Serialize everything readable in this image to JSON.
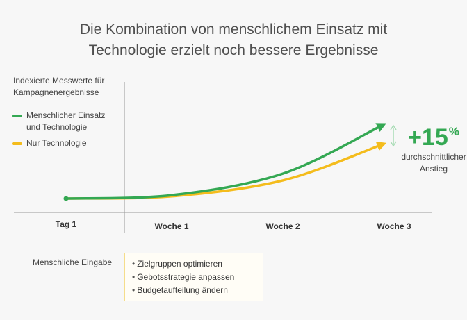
{
  "title": {
    "line1": "Die Kombination von menschlichem Einsatz mit",
    "line2": "Technologie erzielt noch bessere Ergebnisse"
  },
  "chart_data": {
    "type": "line",
    "ylabel": "Indexierte Messwerte für Kampagnenergebnisse",
    "categories": [
      "Tag 1",
      "Woche 1",
      "Woche 2",
      "Woche 3"
    ],
    "y_ticks": "none",
    "grid": false,
    "legend_position": "left",
    "series": [
      {
        "name": "Menschlicher Einsatz und Technologie",
        "color": "#34a853",
        "values": [
          1.0,
          1.3,
          3.2,
          7.5
        ]
      },
      {
        "name": "Nur Technologie",
        "color": "#f4bc1c",
        "values": [
          1.0,
          1.2,
          2.6,
          5.8
        ]
      }
    ],
    "annotation": {
      "value": "+15",
      "unit": "%",
      "label": "durchschnittlicher Anstieg"
    }
  },
  "legend_lines": {
    "series1": [
      "Menschlicher Einsatz",
      "und Technologie"
    ],
    "series2": [
      "Nur Technologie"
    ]
  },
  "ylabel_lines": [
    "Indexierte Messwerte für",
    "Kampagnenergebnisse"
  ],
  "callout_lines": [
    "durchschnittlicher",
    "Anstieg"
  ],
  "human_input": {
    "label": "Menschliche Eingabe",
    "items": [
      "Zielgruppen optimieren",
      "Gebotsstrategie anpassen",
      "Budgetaufteilung ändern"
    ],
    "border_color": "#f5dd8a"
  }
}
